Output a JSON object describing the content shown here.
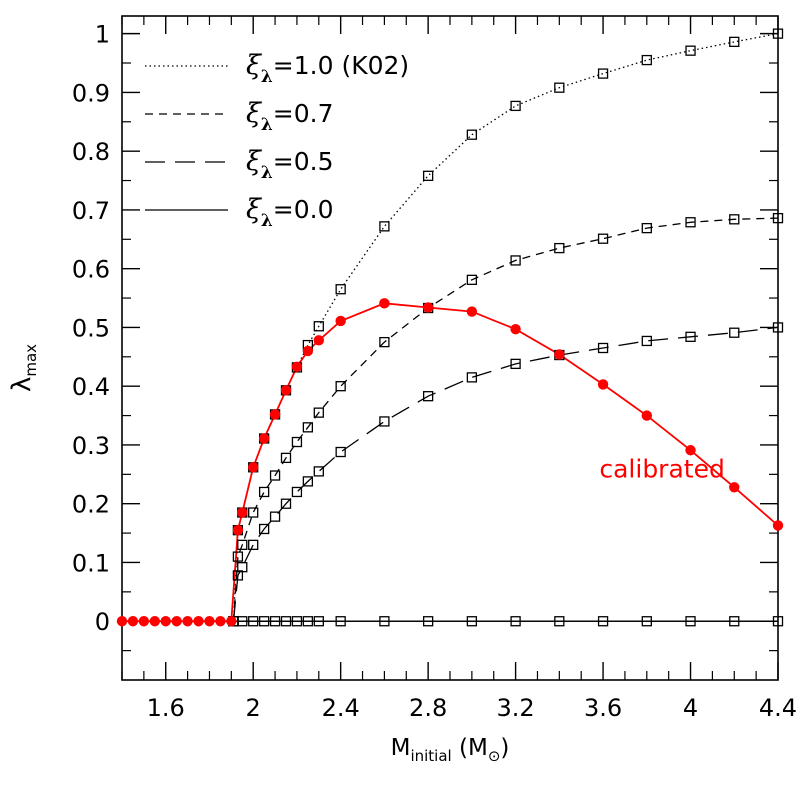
{
  "chart_data": {
    "type": "line",
    "xlabel": {
      "main": "M",
      "sub": "initial",
      "unit_open": " (M",
      "unit_sym": "⊙",
      "unit_close": ")"
    },
    "ylabel": {
      "main": "λ",
      "sub": "max"
    },
    "xlim": [
      1.4,
      4.4
    ],
    "ylim": [
      -0.1,
      1.03
    ],
    "xticks": [
      1.6,
      2.0,
      2.4,
      2.8,
      3.2,
      3.6,
      4.0,
      4.4
    ],
    "xtick_labels": [
      "1.6",
      "2",
      "2.4",
      "2.8",
      "3.2",
      "3.6",
      "4",
      "4.4"
    ],
    "yticks": [
      0,
      0.1,
      0.2,
      0.3,
      0.4,
      0.5,
      0.6,
      0.7,
      0.8,
      0.9,
      1.0
    ],
    "ytick_labels": [
      "0",
      "0.1",
      "0.2",
      "0.3",
      "0.4",
      "0.5",
      "0.6",
      "0.7",
      "0.8",
      "0.9",
      "1"
    ],
    "legend_position": "top-left",
    "series": [
      {
        "name": "ξλ=1.0 (K02)",
        "legend_greek": "ξ",
        "legend_sub": "λ",
        "legend_rest": "=1.0  (K02)",
        "style": "dotted",
        "marker": "open-square",
        "color": "#000000",
        "x": [
          1.91,
          1.93,
          1.95,
          2.0,
          2.05,
          2.1,
          2.15,
          2.2,
          2.25,
          2.3,
          2.4,
          2.6,
          2.8,
          3.0,
          3.2,
          3.4,
          3.6,
          3.8,
          4.0,
          4.2,
          4.4
        ],
        "y": [
          0.0,
          0.155,
          0.185,
          0.262,
          0.311,
          0.352,
          0.393,
          0.432,
          0.47,
          0.502,
          0.565,
          0.672,
          0.758,
          0.828,
          0.877,
          0.908,
          0.932,
          0.955,
          0.971,
          0.986,
          1.0
        ]
      },
      {
        "name": "ξλ=0.7",
        "legend_greek": "ξ",
        "legend_sub": "λ",
        "legend_rest": "=0.7",
        "style": "short-dashed",
        "marker": "open-square",
        "color": "#000000",
        "x": [
          1.91,
          1.93,
          1.95,
          2.0,
          2.05,
          2.1,
          2.15,
          2.2,
          2.25,
          2.3,
          2.4,
          2.6,
          2.8,
          3.0,
          3.2,
          3.4,
          3.6,
          3.8,
          4.0,
          4.2,
          4.4
        ],
        "y": [
          0.0,
          0.11,
          0.13,
          0.185,
          0.22,
          0.248,
          0.278,
          0.305,
          0.33,
          0.355,
          0.4,
          0.475,
          0.533,
          0.581,
          0.614,
          0.635,
          0.651,
          0.669,
          0.679,
          0.684,
          0.686
        ]
      },
      {
        "name": "ξλ=0.5",
        "legend_greek": "ξ",
        "legend_sub": "λ",
        "legend_rest": "=0.5",
        "style": "long-dashed",
        "marker": "open-square",
        "color": "#000000",
        "x": [
          1.91,
          1.93,
          1.95,
          2.0,
          2.05,
          2.1,
          2.15,
          2.2,
          2.25,
          2.3,
          2.4,
          2.6,
          2.8,
          3.0,
          3.2,
          3.4,
          3.6,
          3.8,
          4.0,
          4.2,
          4.4
        ],
        "y": [
          0.0,
          0.078,
          0.092,
          0.13,
          0.157,
          0.178,
          0.2,
          0.22,
          0.238,
          0.255,
          0.288,
          0.34,
          0.383,
          0.415,
          0.438,
          0.453,
          0.465,
          0.477,
          0.484,
          0.491,
          0.5
        ]
      },
      {
        "name": "ξλ=0.0",
        "legend_greek": "ξ",
        "legend_sub": "λ",
        "legend_rest": "=0.0",
        "style": "solid",
        "marker": "open-square",
        "color": "#000000",
        "x": [
          1.91,
          1.95,
          2.0,
          2.05,
          2.1,
          2.15,
          2.2,
          2.25,
          2.3,
          2.4,
          2.6,
          2.8,
          3.0,
          3.2,
          3.4,
          3.6,
          3.8,
          4.0,
          4.2,
          4.4
        ],
        "y": [
          0,
          0,
          0,
          0,
          0,
          0,
          0,
          0,
          0,
          0,
          0,
          0,
          0,
          0,
          0,
          0,
          0,
          0,
          0,
          0
        ]
      },
      {
        "name": "calibrated",
        "style": "solid",
        "marker": "filled-circle",
        "color": "#ff0000",
        "x": [
          1.4,
          1.45,
          1.5,
          1.55,
          1.6,
          1.65,
          1.7,
          1.75,
          1.8,
          1.85,
          1.9,
          1.93,
          1.95,
          2.0,
          2.05,
          2.1,
          2.15,
          2.2,
          2.25,
          2.3,
          2.4,
          2.6,
          2.8,
          3.0,
          3.2,
          3.4,
          3.6,
          3.8,
          4.0,
          4.2,
          4.4
        ],
        "y": [
          0,
          0,
          0,
          0,
          0,
          0,
          0,
          0,
          0,
          0,
          0,
          0.155,
          0.185,
          0.262,
          0.311,
          0.352,
          0.393,
          0.433,
          0.46,
          0.478,
          0.511,
          0.541,
          0.534,
          0.527,
          0.497,
          0.454,
          0.403,
          0.35,
          0.291,
          0.228,
          0.163
        ]
      }
    ],
    "annotations": [
      {
        "text": "calibrated",
        "x": 3.87,
        "y": 0.245,
        "color": "#ff0000"
      }
    ]
  }
}
